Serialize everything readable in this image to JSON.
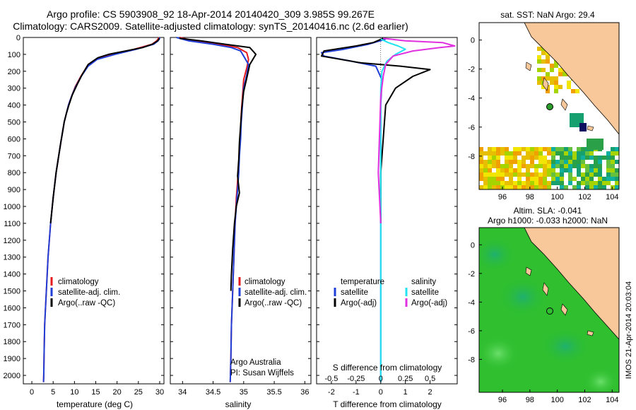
{
  "header": {
    "line1": "Argo profile: CS 5903908_92 18-Apr-2014 20140420_309 3.985S 99.267E",
    "line2": "Climatology: CARS2009. Satellite-adjusted climatology: synTS_20140416.nc (2.6d earlier)"
  },
  "colors": {
    "climatology": "#e41a1c",
    "satellite": "#1f3fd8",
    "argo": "#000000",
    "sat_salinity": "#22e4f0",
    "argo_adj_salinity": "#e030e0",
    "land": "#f9c89a",
    "sea_sla": "#2fbf2f"
  },
  "depth_axis": {
    "ticks": [
      0,
      100,
      200,
      300,
      400,
      500,
      600,
      700,
      800,
      900,
      1000,
      1100,
      1200,
      1300,
      1400,
      1500,
      1600,
      1700,
      1800,
      1900,
      2000
    ],
    "range": [
      0,
      2050
    ]
  },
  "chart_data": [
    {
      "type": "line",
      "xlabel": "temperature (deg C)",
      "xlim": [
        -2,
        31
      ],
      "ylim": [
        0,
        2050
      ],
      "xticks": [
        0,
        5,
        10,
        15,
        20,
        25,
        30
      ],
      "legend": [
        "climatology",
        "satellite-adj. clim.",
        "Argo(..raw -QC)"
      ],
      "series": [
        {
          "name": "climatology",
          "x": [
            29.8,
            29.6,
            29.3,
            28.2,
            24,
            19,
            15,
            13,
            11.5,
            10.2,
            9.3,
            8.6,
            8.1,
            7.6,
            7.2,
            6.8,
            6.3,
            5.7,
            5.0,
            4.4,
            3.8,
            3.4,
            3.0,
            2.9,
            2.8,
            2.75
          ],
          "y": [
            0,
            10,
            20,
            40,
            70,
            100,
            130,
            170,
            230,
            290,
            350,
            400,
            450,
            500,
            560,
            620,
            700,
            800,
            950,
            1100,
            1300,
            1500,
            1700,
            1850,
            2000,
            2040
          ]
        },
        {
          "name": "satellite-adj. clim.",
          "x": [
            30.0,
            29.9,
            29.6,
            28.6,
            24.5,
            19.5,
            15.3,
            13.2,
            11.6,
            10.3,
            9.3,
            8.6,
            8.1,
            7.6,
            7.2,
            6.8,
            6.3,
            5.7,
            5.0,
            4.4,
            3.8,
            3.4,
            3.0,
            2.9,
            2.8,
            2.75
          ],
          "y": [
            0,
            10,
            20,
            40,
            70,
            100,
            130,
            170,
            230,
            290,
            350,
            400,
            450,
            500,
            560,
            620,
            700,
            800,
            950,
            1100,
            1300,
            1500,
            1700,
            1850,
            2000,
            2040
          ]
        },
        {
          "name": "Argo(..raw -QC)",
          "x": [
            29.9,
            29.8,
            29.5,
            28.3,
            26,
            22,
            18,
            15.5,
            13.2,
            11.8,
            10.6,
            9.5,
            8.7,
            8.1,
            7.6,
            7.2,
            6.8,
            6.3,
            5.7,
            5.0,
            4.4
          ],
          "y": [
            5,
            10,
            20,
            40,
            60,
            80,
            100,
            120,
            160,
            220,
            280,
            340,
            400,
            450,
            500,
            560,
            620,
            700,
            800,
            950,
            1100
          ]
        }
      ]
    },
    {
      "type": "line",
      "xlabel": "salinity",
      "xlim": [
        33.8,
        36.1
      ],
      "ylim": [
        0,
        2050
      ],
      "xticks": [
        34,
        34.5,
        35,
        35.5,
        36
      ],
      "xticklabels": [
        "34",
        "34.5",
        "35",
        "35.5",
        "36"
      ],
      "legend": [
        "climatology",
        "satellite-adj. clim.",
        "Argo(..raw -QC)"
      ],
      "annotation": [
        "Argo Australia",
        "PI: Susan Wijffels"
      ],
      "series": [
        {
          "name": "climatology",
          "x": [
            33.95,
            34.2,
            34.6,
            34.9,
            35.05,
            35.08,
            35.05,
            35.0,
            34.98,
            34.96,
            34.95,
            34.93,
            34.92,
            34.9,
            34.88,
            34.86,
            34.84,
            34.82,
            34.8,
            34.79,
            34.78
          ],
          "y": [
            0,
            20,
            40,
            60,
            90,
            130,
            180,
            250,
            350,
            450,
            550,
            650,
            750,
            850,
            950,
            1100,
            1300,
            1500,
            1700,
            1900,
            2040
          ]
        },
        {
          "name": "satellite-adj. clim.",
          "x": [
            33.9,
            34.1,
            34.5,
            34.8,
            34.95,
            35.0,
            35.08,
            35.05,
            35.0,
            34.98,
            34.96,
            34.95,
            34.93,
            34.92,
            34.9,
            34.88,
            34.86,
            34.84,
            34.82,
            34.8,
            34.79,
            34.78
          ],
          "y": [
            0,
            20,
            40,
            60,
            80,
            110,
            160,
            220,
            300,
            400,
            500,
            600,
            700,
            800,
            900,
            1000,
            1100,
            1300,
            1500,
            1700,
            1900,
            2040
          ]
        },
        {
          "name": "Argo(..raw -QC)",
          "x": [
            33.95,
            34.3,
            34.7,
            35.1,
            35.15,
            35.2,
            35.1,
            35.05,
            35.0,
            34.97,
            34.95,
            34.93,
            34.92,
            34.9,
            34.93,
            34.88,
            34.85,
            34.82,
            34.8,
            34.79
          ],
          "y": [
            5,
            20,
            40,
            60,
            80,
            100,
            160,
            240,
            320,
            420,
            520,
            620,
            720,
            820,
            920,
            1000,
            1100,
            1250,
            1400,
            1500
          ]
        }
      ]
    },
    {
      "type": "line",
      "xlabel": "T difference from climatology",
      "xlabel_top": "S difference from climatology",
      "xlim": [
        -2.6,
        3.1
      ],
      "ylim": [
        0,
        2050
      ],
      "xticks": [
        -2,
        -1,
        0,
        1,
        2
      ],
      "xticks_top": [
        -0.5,
        -0.25,
        0,
        0.25,
        0.5
      ],
      "legend": [
        "temperature",
        "satellite",
        "Argo(-adj)",
        "salinity",
        "satellite",
        "Argo(-adj)"
      ],
      "series": [
        {
          "name": "satellite",
          "x": [
            0.2,
            -0.5,
            -1.5,
            -2.4,
            -2.3,
            -1.2,
            -0.2,
            0.05,
            0.0,
            0.0,
            0.0,
            0.0
          ],
          "y": [
            10,
            40,
            70,
            90,
            110,
            140,
            170,
            250,
            400,
            700,
            1200,
            2040
          ]
        },
        {
          "name": "Argo(-adj)",
          "x": [
            0.1,
            -0.3,
            -1.0,
            -2.3,
            -2.4,
            -0.8,
            0.8,
            2.0,
            1.3,
            0.6,
            0.2,
            0.1,
            0.0,
            0.0
          ],
          "y": [
            5,
            30,
            50,
            80,
            110,
            150,
            170,
            190,
            230,
            300,
            400,
            600,
            800,
            1100
          ]
        },
        {
          "name": "satellite",
          "x": [
            0.0,
            0.3,
            0.7,
            1.0,
            0.6,
            0.25,
            0.05,
            0.0,
            0.0,
            0.0,
            0.0
          ],
          "y": [
            10,
            30,
            50,
            70,
            100,
            140,
            200,
            300,
            500,
            1000,
            2040
          ]
        },
        {
          "name": "Argo(-adj)",
          "x": [
            0.1,
            1.0,
            2.5,
            3.0,
            2.4,
            1.3,
            0.5,
            0.2,
            0.1,
            0.0,
            -0.1,
            0.0
          ],
          "y": [
            5,
            20,
            30,
            50,
            60,
            80,
            110,
            160,
            230,
            350,
            800,
            1100
          ]
        }
      ]
    }
  ],
  "map_sst": {
    "title": "sat. SST: NaN Argo: 29.4",
    "xticks": [
      96,
      98,
      100,
      102,
      104
    ],
    "yticks": [
      0,
      -2,
      -4,
      -6,
      -8
    ],
    "lon_range": [
      94.3,
      104.5
    ],
    "lat_range": [
      -10.3,
      1.2
    ],
    "argo_marker": {
      "lon": 99.267,
      "lat": -3.985
    }
  },
  "map_sla": {
    "title_line1": "Altim. SLA: -0.041",
    "title_line2": "Argo h1000: -0.033 h2000: NaN",
    "xticks": [
      96,
      98,
      100,
      102,
      104
    ],
    "yticks": [
      0,
      -2,
      -4,
      -6,
      -8
    ],
    "lon_range": [
      94.3,
      104.5
    ],
    "lat_range": [
      -10.3,
      1.2
    ],
    "argo_marker": {
      "lon": 99.267,
      "lat": -3.985
    }
  },
  "footer": {
    "stamp": "IMOS 21-Apr-2014 20:03:04"
  }
}
